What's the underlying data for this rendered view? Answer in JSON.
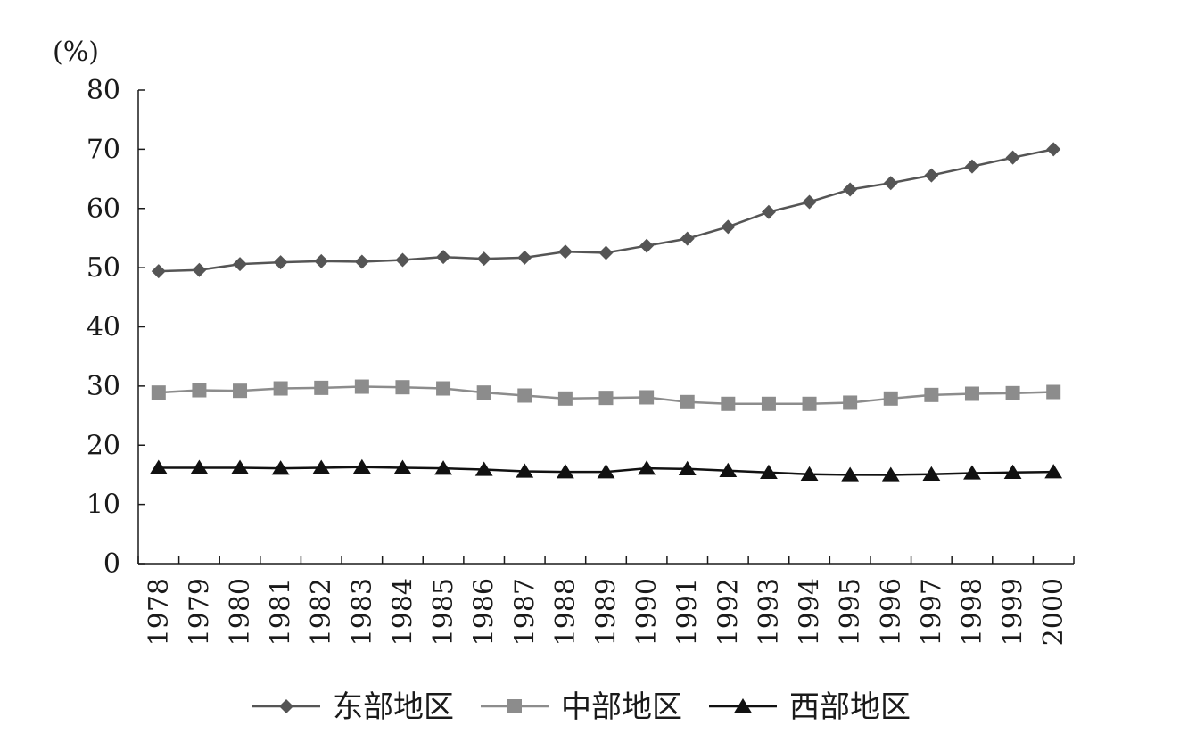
{
  "chart_data": {
    "type": "line",
    "unit_label": "(%)",
    "x": [
      "1978",
      "1979",
      "1980",
      "1981",
      "1982",
      "1983",
      "1984",
      "1985",
      "1986",
      "1987",
      "1988",
      "1989",
      "1990",
      "1991",
      "1992",
      "1993",
      "1994",
      "1995",
      "1996",
      "1997",
      "1998",
      "1999",
      "2000"
    ],
    "ylim": [
      0,
      80
    ],
    "yticks": [
      0,
      10,
      20,
      30,
      40,
      50,
      60,
      70,
      80
    ],
    "grid": false,
    "legend_position": "bottom",
    "series": [
      {
        "name": "东部地区",
        "marker": "diamond",
        "color": "#555555",
        "values": [
          49.4,
          49.6,
          50.6,
          50.9,
          51.1,
          51.0,
          51.3,
          51.8,
          51.5,
          51.7,
          52.7,
          52.5,
          53.7,
          54.9,
          56.9,
          59.4,
          61.1,
          63.2,
          64.3,
          65.6,
          67.1,
          68.6,
          70.0
        ]
      },
      {
        "name": "中部地区",
        "marker": "square",
        "color": "#8c8c8c",
        "values": [
          28.9,
          29.3,
          29.2,
          29.6,
          29.7,
          29.9,
          29.8,
          29.6,
          28.9,
          28.4,
          27.9,
          28.0,
          28.1,
          27.3,
          27.0,
          27.0,
          27.0,
          27.2,
          27.9,
          28.5,
          28.7,
          28.8,
          29.0
        ]
      },
      {
        "name": "西部地区",
        "marker": "triangle",
        "color": "#111111",
        "values": [
          16.2,
          16.2,
          16.2,
          16.1,
          16.2,
          16.3,
          16.2,
          16.1,
          15.9,
          15.6,
          15.5,
          15.5,
          16.1,
          16.0,
          15.7,
          15.4,
          15.1,
          15.0,
          15.0,
          15.1,
          15.3,
          15.4,
          15.5
        ]
      }
    ]
  }
}
